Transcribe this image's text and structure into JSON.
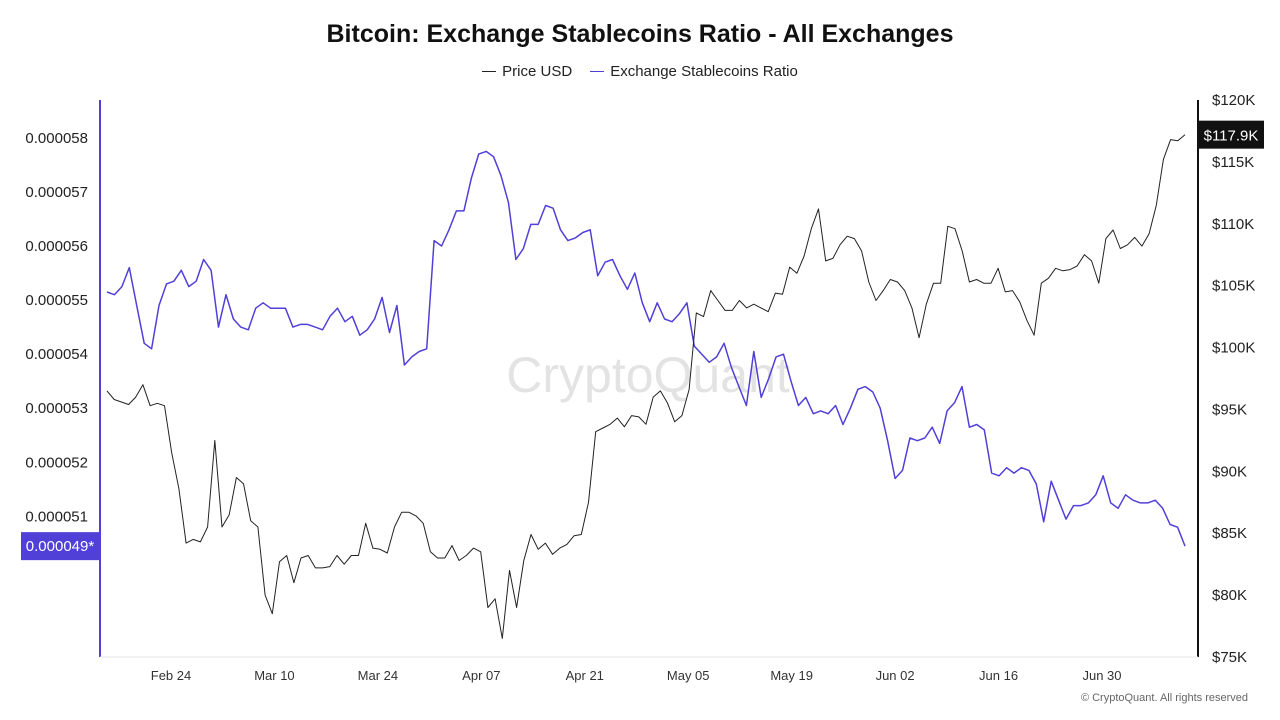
{
  "title": "Bitcoin: Exchange Stablecoins Ratio - All Exchanges",
  "legend": [
    {
      "label": "Price USD",
      "color": "#222222"
    },
    {
      "label": "Exchange Stablecoins Ratio",
      "color": "#5040d8"
    }
  ],
  "watermark": "CryptoQuant",
  "credit": "© CryptoQuant. All rights reserved",
  "chart_data": {
    "type": "line",
    "x_ticks": [
      "Feb 24",
      "Mar 10",
      "Mar 24",
      "Apr 07",
      "Apr 21",
      "May 05",
      "May 19",
      "Jun 02",
      "Jun 16",
      "Jun 30"
    ],
    "left_axis": {
      "ticks": [
        "0.000058",
        "0.000057",
        "0.000056",
        "0.000055",
        "0.000054",
        "0.000053",
        "0.000052",
        "0.000051"
      ],
      "range": [
        4.84e-05,
        5.87e-05
      ],
      "current_label": "0.000049*"
    },
    "right_axis": {
      "ticks": [
        "$120K",
        "$115K",
        "$110K",
        "$105K",
        "$100K",
        "$95K",
        "$90K",
        "$85K",
        "$80K",
        "$75K"
      ],
      "range": [
        75000,
        120000
      ],
      "current_label": "$117.9K"
    },
    "series": [
      {
        "name": "Exchange Stablecoins Ratio",
        "axis": "left",
        "color": "#5040d8",
        "values": [
          5.515e-05,
          5.51e-05,
          5.525e-05,
          5.56e-05,
          5.49e-05,
          5.42e-05,
          5.41e-05,
          5.49e-05,
          5.53e-05,
          5.535e-05,
          5.555e-05,
          5.525e-05,
          5.535e-05,
          5.575e-05,
          5.555e-05,
          5.45e-05,
          5.51e-05,
          5.465e-05,
          5.45e-05,
          5.445e-05,
          5.485e-05,
          5.495e-05,
          5.485e-05,
          5.485e-05,
          5.485e-05,
          5.45e-05,
          5.455e-05,
          5.455e-05,
          5.45e-05,
          5.445e-05,
          5.47e-05,
          5.485e-05,
          5.46e-05,
          5.47e-05,
          5.435e-05,
          5.445e-05,
          5.465e-05,
          5.505e-05,
          5.44e-05,
          5.49e-05,
          5.38e-05,
          5.395e-05,
          5.405e-05,
          5.41e-05,
          5.61e-05,
          5.6e-05,
          5.63e-05,
          5.665e-05,
          5.665e-05,
          5.725e-05,
          5.77e-05,
          5.775e-05,
          5.765e-05,
          5.73e-05,
          5.68e-05,
          5.575e-05,
          5.595e-05,
          5.64e-05,
          5.64e-05,
          5.675e-05,
          5.67e-05,
          5.63e-05,
          5.61e-05,
          5.615e-05,
          5.625e-05,
          5.63e-05,
          5.545e-05,
          5.57e-05,
          5.575e-05,
          5.545e-05,
          5.52e-05,
          5.55e-05,
          5.495e-05,
          5.46e-05,
          5.495e-05,
          5.465e-05,
          5.46e-05,
          5.475e-05,
          5.495e-05,
          5.415e-05,
          5.4e-05,
          5.385e-05,
          5.395e-05,
          5.42e-05,
          5.375e-05,
          5.34e-05,
          5.305e-05,
          5.405e-05,
          5.32e-05,
          5.355e-05,
          5.395e-05,
          5.4e-05,
          5.35e-05,
          5.305e-05,
          5.32e-05,
          5.29e-05,
          5.295e-05,
          5.29e-05,
          5.305e-05,
          5.27e-05,
          5.3e-05,
          5.335e-05,
          5.34e-05,
          5.33e-05,
          5.3e-05,
          5.24e-05,
          5.17e-05,
          5.185e-05,
          5.245e-05,
          5.24e-05,
          5.245e-05,
          5.265e-05,
          5.235e-05,
          5.295e-05,
          5.31e-05,
          5.34e-05,
          5.265e-05,
          5.27e-05,
          5.26e-05,
          5.18e-05,
          5.175e-05,
          5.19e-05,
          5.18e-05,
          5.19e-05,
          5.185e-05,
          5.16e-05,
          5.09e-05,
          5.165e-05,
          5.13e-05,
          5.095e-05,
          5.12e-05,
          5.12e-05,
          5.125e-05,
          5.14e-05,
          5.175e-05,
          5.125e-05,
          5.115e-05,
          5.14e-05,
          5.13e-05,
          5.125e-05,
          5.125e-05,
          5.13e-05,
          5.115e-05,
          5.085e-05,
          5.08e-05,
          5.045e-05
        ]
      },
      {
        "name": "Price USD",
        "axis": "right",
        "color": "#222222",
        "values": [
          96500,
          95800,
          95600,
          95400,
          96000,
          97000,
          95300,
          95500,
          95300,
          91500,
          88600,
          84200,
          84500,
          84300,
          85500,
          92500,
          85500,
          86500,
          89500,
          89000,
          86000,
          85500,
          80000,
          78500,
          82700,
          83200,
          81000,
          83000,
          83200,
          82200,
          82200,
          82300,
          83200,
          82500,
          83200,
          83200,
          85800,
          83800,
          83700,
          83400,
          85500,
          86700,
          86700,
          86400,
          85800,
          83500,
          83000,
          83000,
          84000,
          82800,
          83200,
          83800,
          83500,
          79000,
          79700,
          76500,
          82000,
          79000,
          82800,
          84900,
          83700,
          84200,
          83300,
          83800,
          84100,
          84800,
          84900,
          87500,
          93200,
          93500,
          93800,
          94300,
          93600,
          94500,
          94400,
          93800,
          96000,
          96500,
          95500,
          94000,
          94500,
          96600,
          102800,
          102500,
          104600,
          103800,
          103000,
          103000,
          103800,
          103200,
          103500,
          103200,
          102900,
          104400,
          104300,
          106500,
          106000,
          107400,
          109600,
          111200,
          107000,
          107200,
          108300,
          109000,
          108800,
          107800,
          105300,
          103800,
          104600,
          105500,
          105300,
          104600,
          103200,
          100800,
          103500,
          105200,
          105200,
          109800,
          109600,
          107800,
          105300,
          105500,
          105200,
          105200,
          106400,
          104500,
          104600,
          103700,
          102200,
          101000,
          105200,
          105600,
          106400,
          106200,
          106300,
          106600,
          107500,
          107000,
          105200,
          108800,
          109500,
          108000,
          108300,
          108900,
          108200,
          109200,
          111500,
          115200,
          116800,
          116700,
          117200
        ]
      }
    ]
  }
}
